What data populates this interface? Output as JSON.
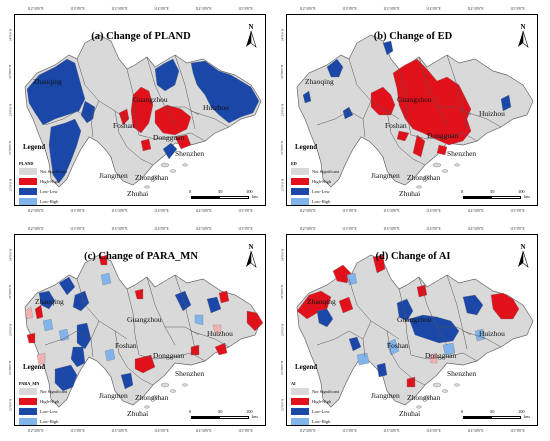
{
  "legend_title": "Legend",
  "legend_categories": [
    {
      "label": "Not Significant",
      "color": "#d9d9d9"
    },
    {
      "label": "High-High",
      "color": "#e0111b"
    },
    {
      "label": "Low-Low",
      "color": "#1a47a8"
    },
    {
      "label": "Low-High",
      "color": "#82b4ec"
    },
    {
      "label": "High-Low",
      "color": "#f2b2b5"
    }
  ],
  "scale": {
    "ticks": [
      "0",
      "50",
      "100"
    ],
    "unit": "km"
  },
  "north": "N",
  "coords": {
    "top": [
      "112°30'0\"E",
      "113°0'0\"E",
      "113°30'0\"E",
      "114°0'0\"E",
      "114°30'0\"E",
      "115°0'0\"E"
    ],
    "bottom": [
      "112°30'0\"E",
      "113°0'0\"E",
      "113°30'0\"E",
      "114°0'0\"E",
      "114°30'0\"E",
      "115°0'0\"E"
    ],
    "left": [
      "24°0'0\"N",
      "23°30'0\"N",
      "23°0'0\"N",
      "22°30'0\"N",
      "22°0'0\"N"
    ]
  },
  "panels": [
    {
      "title": "(a) Change of PLAND",
      "var": "PLAND",
      "cities": [
        "Zhaoqing",
        "Guangzhou",
        "Huizhou",
        "Foshan",
        "Dongguan",
        "Shenzhen",
        "Jiangmen",
        "Zhongshan",
        "Zhuhai"
      ]
    },
    {
      "title": "(b) Change of ED",
      "var": "ED",
      "cities": [
        "Zhaoqing",
        "Guangzhou",
        "Huizhou",
        "Foshan",
        "Dongguan",
        "Shenzhen",
        "Jiangmen",
        "Zhongshan",
        "Zhuhai"
      ]
    },
    {
      "title": "(c) Change of PARA_MN",
      "var": "PARA_MN",
      "cities": [
        "Zhaoqing",
        "Guangzhou",
        "Huizhou",
        "Foshan",
        "Dongguan",
        "Shenzhen",
        "Jiangmen",
        "Zhongshan",
        "Zhuhai"
      ]
    },
    {
      "title": "(d) Change of AI",
      "var": "AI",
      "cities": [
        "Zhaoqing",
        "Guangzhou",
        "Huizhou",
        "Foshan",
        "Dongguan",
        "Shenzhen",
        "Jiangmen",
        "Zhongshan",
        "Zhuhai"
      ]
    }
  ]
}
